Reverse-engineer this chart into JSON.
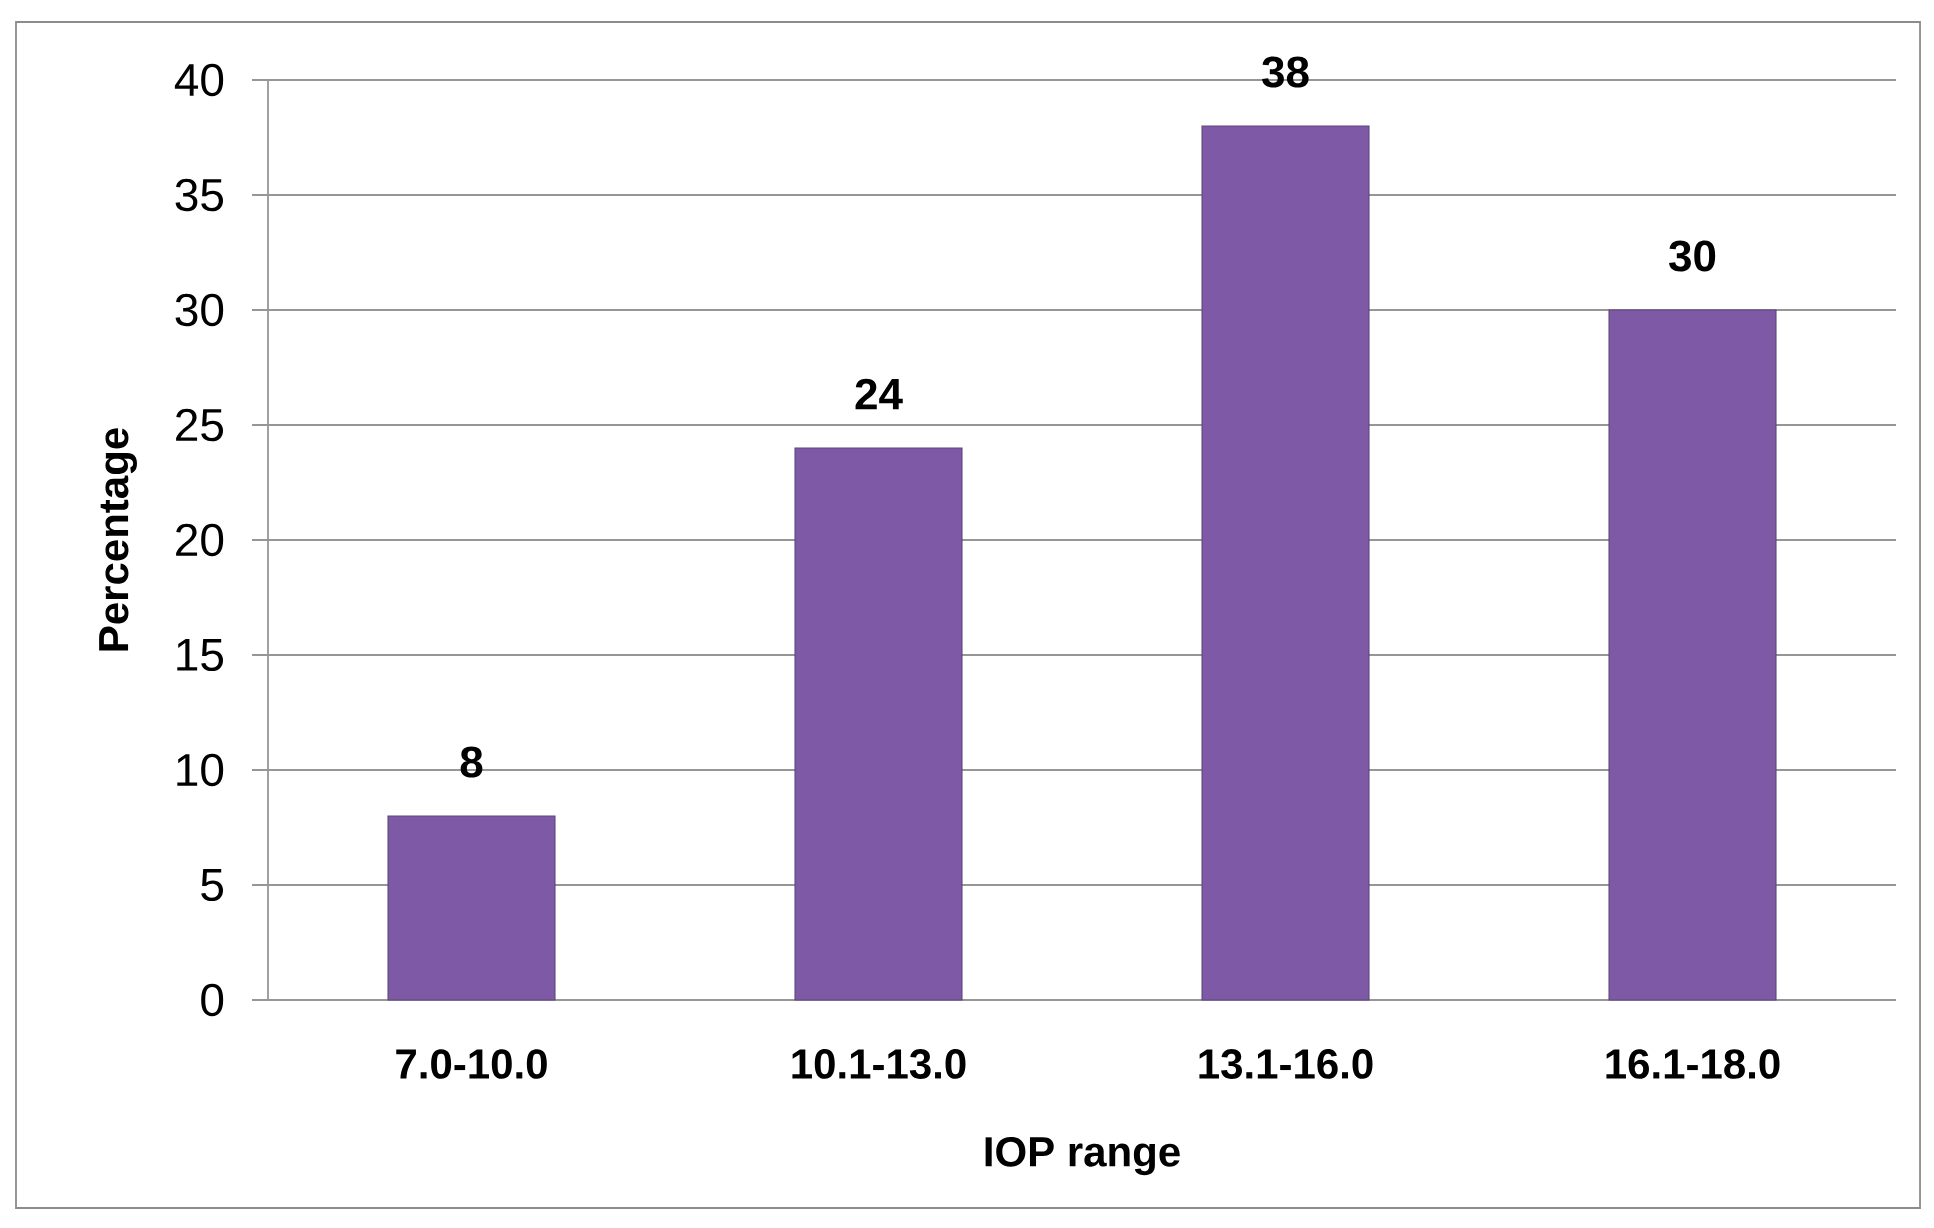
{
  "chart_data": {
    "type": "bar",
    "xlabel": "IOP range",
    "ylabel": "Percentage",
    "categories": [
      "7.0-10.0",
      "10.1-13.0",
      "13.1-16.0",
      "16.1-18.0"
    ],
    "values": [
      8,
      24,
      38,
      30
    ],
    "color": "#7e5aa6",
    "ylim": [
      0,
      40
    ],
    "yticks": [
      0,
      5,
      10,
      15,
      20,
      25,
      30,
      35,
      40
    ],
    "grid": "y",
    "data_labels": true
  }
}
